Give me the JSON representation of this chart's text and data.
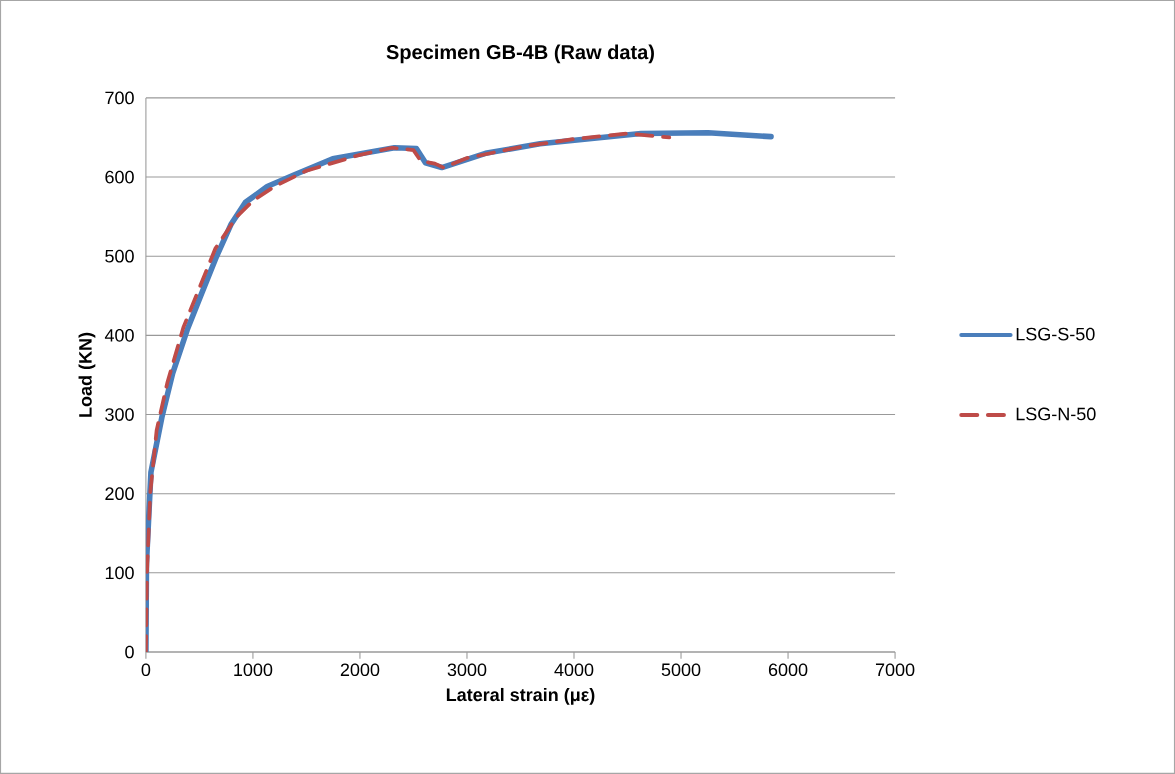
{
  "chart_data": {
    "type": "line",
    "title": "Specimen GB-4B (Raw data)",
    "xlabel": "Lateral strain (με)",
    "ylabel": "Load (KN)",
    "xlim": [
      0,
      7000
    ],
    "ylim": [
      0,
      700
    ],
    "xticks": [
      0,
      1000,
      2000,
      3000,
      4000,
      5000,
      6000,
      7000
    ],
    "yticks": [
      0,
      100,
      200,
      300,
      400,
      500,
      600,
      700
    ],
    "grid": "y",
    "legend": "right",
    "marker": "none",
    "series": [
      {
        "name": "LSG-S-50",
        "color": "#4a7ebb",
        "line_style": "solid",
        "x": [
          0,
          5,
          47,
          150,
          250,
          386,
          521,
          658,
          794,
          930,
          1133,
          1371,
          1745,
          2322,
          2527,
          2612,
          2765,
          3173,
          3682,
          4626,
          5252,
          5841
        ],
        "values": [
          0,
          112,
          227,
          297,
          352,
          407,
          453,
          499,
          540,
          568,
          588,
          602,
          623,
          637,
          636,
          618,
          612,
          630,
          642,
          655,
          656,
          651
        ]
      },
      {
        "name": "LSG-N-50",
        "color": "#be4b48",
        "line_style": "dashed",
        "x": [
          0,
          10,
          40,
          100,
          200,
          350,
          500,
          650,
          850,
          1000,
          1200,
          1500,
          2000,
          2300,
          2500,
          2570,
          2700,
          2780,
          3000,
          3500,
          4000,
          4500,
          4890
        ],
        "values": [
          0,
          100,
          200,
          280,
          340,
          410,
          460,
          510,
          550,
          570,
          588,
          608,
          628,
          637,
          634,
          620,
          617,
          612,
          624,
          638,
          648,
          655,
          650
        ]
      }
    ]
  }
}
